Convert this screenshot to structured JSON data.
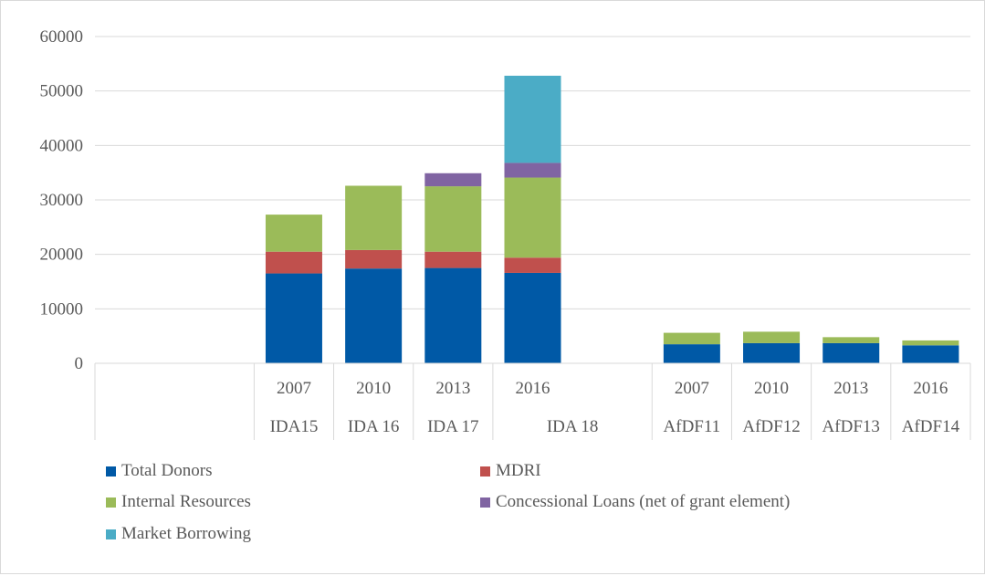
{
  "chart_data": {
    "type": "bar",
    "stacked": true,
    "categories": [
      "",
      "",
      "2007",
      "2010",
      "2013",
      "2016",
      "",
      "2007",
      "2010",
      "2013",
      "2016"
    ],
    "groups": [
      {
        "label": "",
        "start": 0,
        "end": 1
      },
      {
        "label": "IDA15",
        "start": 2,
        "end": 2
      },
      {
        "label": "IDA 16",
        "start": 3,
        "end": 3
      },
      {
        "label": "IDA 17",
        "start": 4,
        "end": 4
      },
      {
        "label": "IDA 18",
        "start": 5,
        "end": 6
      },
      {
        "label": "AfDF11",
        "start": 7,
        "end": 7
      },
      {
        "label": "AfDF12",
        "start": 8,
        "end": 8
      },
      {
        "label": "AfDF13",
        "start": 9,
        "end": 9
      },
      {
        "label": "AfDF14",
        "start": 10,
        "end": 10
      }
    ],
    "series": [
      {
        "name": "Total Donors",
        "color": "#0059a6",
        "values": [
          0,
          0,
          16500,
          17400,
          17500,
          16600,
          0,
          3500,
          3700,
          3700,
          3300
        ]
      },
      {
        "name": "MDRI",
        "color": "#c0504d",
        "values": [
          0,
          0,
          4000,
          3400,
          3000,
          2800,
          0,
          0,
          0,
          0,
          0
        ]
      },
      {
        "name": "Internal Resources",
        "color": "#9bbb59",
        "values": [
          0,
          0,
          6800,
          11800,
          12000,
          14700,
          0,
          2100,
          2100,
          1100,
          900
        ]
      },
      {
        "name": "Concessional Loans (net of grant element)",
        "color": "#8064a2",
        "values": [
          0,
          0,
          0,
          0,
          2400,
          2700,
          0,
          0,
          0,
          0,
          0
        ]
      },
      {
        "name": "Market Borrowing",
        "color": "#4bacc6",
        "values": [
          0,
          0,
          0,
          0,
          0,
          16000,
          0,
          0,
          0,
          0,
          0
        ]
      }
    ],
    "yticks": [
      0,
      10000,
      20000,
      30000,
      40000,
      50000,
      60000
    ],
    "ylim": [
      0,
      60000
    ],
    "grid": true,
    "legend_position": "bottom"
  }
}
